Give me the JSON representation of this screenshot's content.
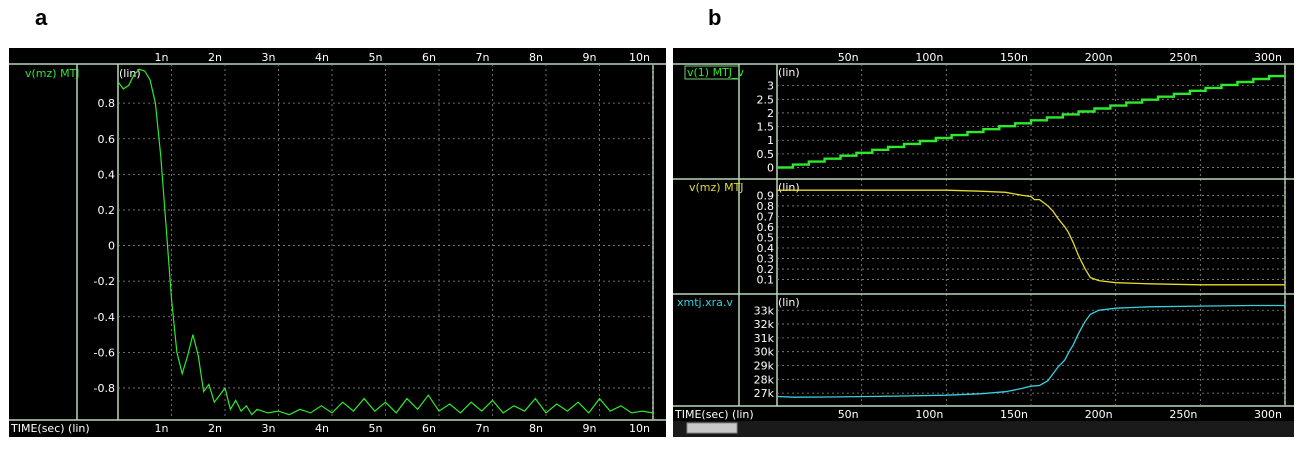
{
  "panels": {
    "a": {
      "letter": "a"
    },
    "b": {
      "letter": "b"
    }
  },
  "colors": {
    "background": "#000000",
    "frame": "#b8d8b8",
    "grid": "#8a8a8a",
    "axis_text": "#ffffff",
    "green_trace": "#2ee82e",
    "yellow_trace": "#e6dc2a",
    "cyan_trace": "#38d0e0"
  },
  "chart_data": [
    {
      "id": "a",
      "type": "line",
      "signal_label": "v(mz) MTJ",
      "y_scale_label": "(lin)",
      "xlabel": "TIME(sec) (lin)",
      "x_ticks": [
        "1n",
        "2n",
        "3n",
        "4n",
        "5n",
        "6n",
        "7n",
        "8n",
        "9n",
        "10n"
      ],
      "x_tick_values": [
        1,
        2,
        3,
        4,
        5,
        6,
        7,
        8,
        9,
        10
      ],
      "xlim": [
        0,
        10
      ],
      "y_ticks": [
        "0.8",
        "0.6",
        "0.4",
        "0.2",
        "0",
        "-0.2",
        "-0.4",
        "-0.6",
        "-0.8"
      ],
      "y_tick_values": [
        0.8,
        0.6,
        0.4,
        0.2,
        0,
        -0.2,
        -0.4,
        -0.6,
        -0.8
      ],
      "ylim": [
        -0.98,
        1.02
      ],
      "series": [
        {
          "color": "#2ee82e",
          "x": [
            0,
            0.1,
            0.2,
            0.3,
            0.4,
            0.5,
            0.6,
            0.7,
            0.8,
            0.9,
            1.0,
            1.1,
            1.2,
            1.3,
            1.4,
            1.5,
            1.6,
            1.7,
            1.8,
            1.9,
            2.0,
            2.1,
            2.2,
            2.3,
            2.4,
            2.5,
            2.6,
            2.8,
            3.0,
            3.2,
            3.4,
            3.6,
            3.8,
            4.0,
            4.2,
            4.4,
            4.6,
            4.8,
            5.0,
            5.2,
            5.4,
            5.6,
            5.8,
            6.0,
            6.2,
            6.4,
            6.6,
            6.8,
            7.0,
            7.2,
            7.4,
            7.6,
            7.8,
            8.0,
            8.2,
            8.4,
            8.6,
            8.8,
            9.0,
            9.2,
            9.4,
            9.6,
            9.8,
            10.0
          ],
          "y": [
            0.92,
            0.88,
            0.9,
            0.96,
            0.99,
            0.98,
            0.93,
            0.8,
            0.5,
            0.1,
            -0.3,
            -0.6,
            -0.72,
            -0.62,
            -0.5,
            -0.62,
            -0.82,
            -0.78,
            -0.88,
            -0.84,
            -0.8,
            -0.92,
            -0.87,
            -0.93,
            -0.9,
            -0.95,
            -0.92,
            -0.94,
            -0.93,
            -0.95,
            -0.92,
            -0.94,
            -0.9,
            -0.94,
            -0.88,
            -0.93,
            -0.86,
            -0.93,
            -0.88,
            -0.94,
            -0.86,
            -0.92,
            -0.84,
            -0.93,
            -0.89,
            -0.94,
            -0.88,
            -0.93,
            -0.87,
            -0.94,
            -0.9,
            -0.93,
            -0.86,
            -0.94,
            -0.89,
            -0.93,
            -0.88,
            -0.94,
            -0.86,
            -0.93,
            -0.9,
            -0.94,
            -0.93,
            -0.94
          ]
        }
      ]
    },
    {
      "id": "b",
      "type": "line",
      "xlabel": "TIME(sec) (lin)",
      "x_ticks": [
        "50n",
        "100n",
        "150n",
        "200n",
        "250n",
        "300n"
      ],
      "x_tick_values": [
        50,
        100,
        150,
        200,
        250,
        300
      ],
      "xlim": [
        0,
        300
      ],
      "subplots": [
        {
          "signal_label": "v(1) MTJ_v",
          "y_scale_label": "(lin)",
          "y_ticks": [
            "3",
            "2.5",
            "2",
            "1.5",
            "1",
            "0.5",
            "0"
          ],
          "y_tick_values": [
            3,
            2.5,
            2,
            1.5,
            1,
            0.5,
            0
          ],
          "ylim": [
            -0.2,
            3.5
          ],
          "step_series": {
            "color": "#2ee82e",
            "steps": 32,
            "x_end": 300,
            "y_start": 0,
            "y_end": 3.35
          }
        },
        {
          "signal_label": "v(mz) MTJ",
          "y_scale_label": "(lin)",
          "y_ticks": [
            "0.9",
            "0.8",
            "0.7",
            "0.6",
            "0.5",
            "0.4",
            "0.3",
            "0.2",
            "0.1"
          ],
          "y_tick_values": [
            0.9,
            0.8,
            0.7,
            0.6,
            0.5,
            0.4,
            0.3,
            0.2,
            0.1
          ],
          "ylim": [
            0.02,
            0.98
          ],
          "series": {
            "color": "#e6dc2a",
            "x": [
              0,
              20,
              60,
              100,
              120,
              135,
              145,
              150,
              152,
              155,
              160,
              163,
              166,
              170,
              172,
              175,
              178,
              182,
              185,
              190,
              200,
              220,
              250,
              280,
              300
            ],
            "y": [
              0.95,
              0.95,
              0.95,
              0.95,
              0.94,
              0.93,
              0.9,
              0.89,
              0.86,
              0.86,
              0.8,
              0.75,
              0.68,
              0.6,
              0.55,
              0.45,
              0.33,
              0.2,
              0.12,
              0.09,
              0.07,
              0.06,
              0.05,
              0.05,
              0.05
            ]
          }
        },
        {
          "signal_label": "xmtj.xra.v",
          "y_scale_label": "(lin)",
          "y_ticks": [
            "33k",
            "32k",
            "31k",
            "30k",
            "29k",
            "28k",
            "27k"
          ],
          "y_tick_values": [
            33000,
            32000,
            31000,
            30000,
            29000,
            28000,
            27000
          ],
          "ylim": [
            26500,
            33600
          ],
          "series": {
            "color": "#38d0e0",
            "x": [
              0,
              10,
              30,
              60,
              100,
              120,
              135,
              145,
              150,
              155,
              160,
              163,
              166,
              170,
              172,
              175,
              178,
              182,
              185,
              190,
              200,
              220,
              250,
              280,
              300
            ],
            "y": [
              26750,
              26700,
              26720,
              26760,
              26850,
              26950,
              27100,
              27350,
              27500,
              27550,
              27900,
              28400,
              28900,
              29400,
              29900,
              30500,
              31300,
              32200,
              32700,
              33000,
              33150,
              33250,
              33300,
              33350,
              33350
            ]
          }
        }
      ]
    }
  ]
}
